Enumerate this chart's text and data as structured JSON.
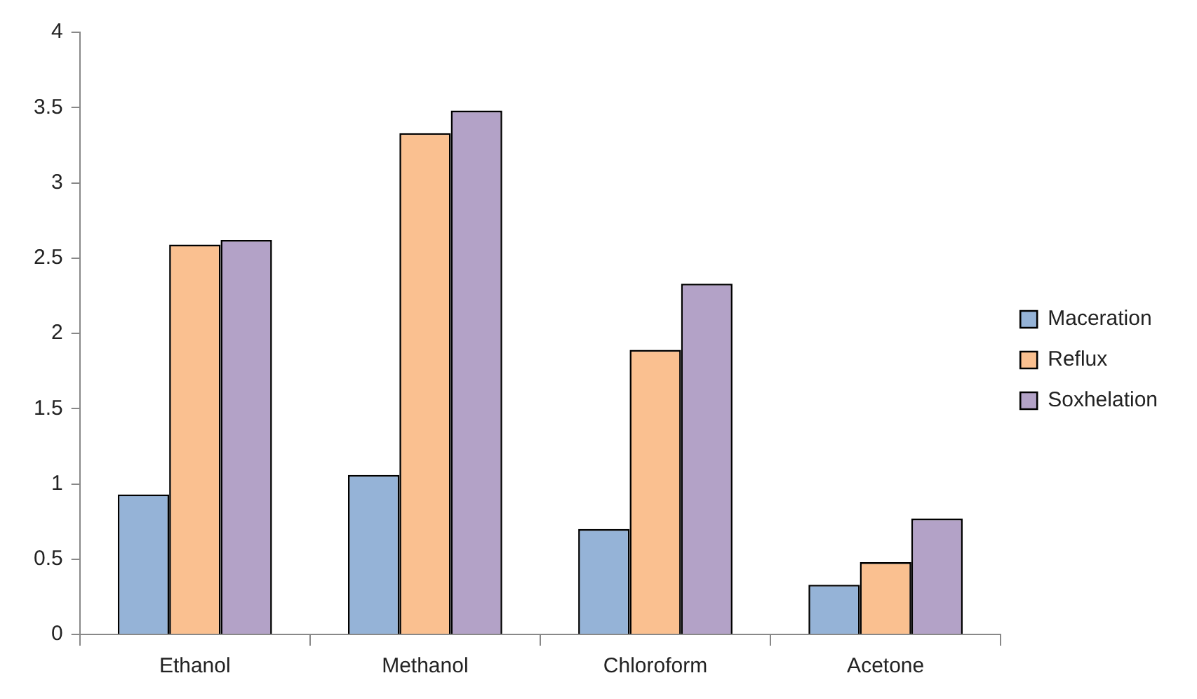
{
  "chart_data": {
    "type": "bar",
    "categories": [
      "Ethanol",
      "Methanol",
      "Chloroform",
      "Acetone"
    ],
    "series": [
      {
        "name": "Maceration",
        "color": "#95b3d7",
        "values": [
          0.93,
          1.06,
          0.7,
          0.33
        ]
      },
      {
        "name": "Reflux",
        "color": "#fac090",
        "values": [
          2.59,
          3.33,
          1.89,
          0.48
        ]
      },
      {
        "name": "Soxhelation",
        "color": "#b3a2c7",
        "values": [
          2.62,
          3.48,
          2.33,
          0.77
        ]
      }
    ],
    "ylim": [
      0,
      4
    ],
    "yticks": [
      0,
      0.5,
      1,
      1.5,
      2,
      2.5,
      3,
      3.5,
      4
    ],
    "grid": false,
    "legend": "right"
  }
}
